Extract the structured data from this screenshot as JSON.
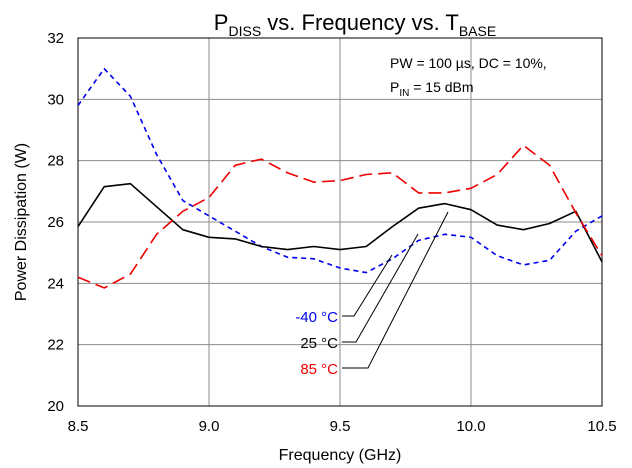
{
  "chart_data": {
    "type": "line",
    "title": {
      "main": "P",
      "sub1": "DISS",
      "middle": " vs. Frequency vs. T",
      "sub2": "BASE"
    },
    "xlabel": "Frequency (GHz)",
    "ylabel": "Power Dissipation (W)",
    "xlim": [
      8.5,
      10.5
    ],
    "ylim": [
      20,
      32
    ],
    "xticks": [
      8.5,
      9.0,
      9.5,
      10.0,
      10.5
    ],
    "xtick_labels": [
      "8.5",
      "9.0",
      "9.5",
      "10.0",
      "10.5"
    ],
    "yticks": [
      20,
      22,
      24,
      26,
      28,
      30,
      32
    ],
    "ytick_labels": [
      "20",
      "22",
      "24",
      "26",
      "28",
      "30",
      "32"
    ],
    "grid": true,
    "annotation": {
      "line1": "PW = 100 µs, DC = 10%,",
      "line2_pre": "P",
      "line2_sub": "IN",
      "line2_post": " = 15 dBm"
    },
    "series": [
      {
        "name": "-40 °C",
        "color": "#0000ee",
        "dash": "dashed",
        "x": [
          8.5,
          8.6,
          8.7,
          8.8,
          8.9,
          9.0,
          9.1,
          9.2,
          9.3,
          9.4,
          9.5,
          9.6,
          9.7,
          9.8,
          9.9,
          10.0,
          10.1,
          10.2,
          10.3,
          10.4,
          10.5
        ],
        "y": [
          29.8,
          31.0,
          30.1,
          28.2,
          26.7,
          26.2,
          25.7,
          25.2,
          24.85,
          24.8,
          24.5,
          24.35,
          24.8,
          25.4,
          25.6,
          25.5,
          24.9,
          24.6,
          24.75,
          25.7,
          26.2
        ]
      },
      {
        "name": "25 °C",
        "color": "#000000",
        "dash": "solid",
        "x": [
          8.5,
          8.6,
          8.7,
          8.8,
          8.9,
          9.0,
          9.1,
          9.2,
          9.3,
          9.4,
          9.5,
          9.6,
          9.7,
          9.8,
          9.9,
          10.0,
          10.1,
          10.2,
          10.3,
          10.4,
          10.5
        ],
        "y": [
          25.85,
          27.15,
          27.25,
          26.5,
          25.75,
          25.5,
          25.45,
          25.2,
          25.1,
          25.2,
          25.1,
          25.2,
          25.85,
          26.45,
          26.6,
          26.4,
          25.9,
          25.75,
          25.95,
          26.35,
          24.7
        ]
      },
      {
        "name": "85 °C",
        "color": "#ee0000",
        "dash": "dashed",
        "x": [
          8.5,
          8.6,
          8.7,
          8.8,
          8.9,
          9.0,
          9.1,
          9.2,
          9.3,
          9.4,
          9.5,
          9.6,
          9.7,
          9.8,
          9.9,
          10.0,
          10.1,
          10.2,
          10.3,
          10.4,
          10.5
        ],
        "y": [
          24.2,
          23.85,
          24.3,
          25.6,
          26.35,
          26.8,
          27.85,
          28.05,
          27.6,
          27.3,
          27.35,
          27.55,
          27.6,
          26.95,
          26.95,
          27.1,
          27.55,
          28.5,
          27.85,
          26.3,
          24.9
        ]
      }
    ]
  }
}
